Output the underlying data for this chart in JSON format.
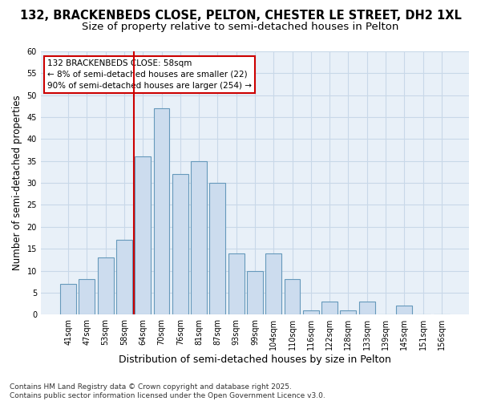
{
  "title1": "132, BRACKENBEDS CLOSE, PELTON, CHESTER LE STREET, DH2 1XL",
  "title2": "Size of property relative to semi-detached houses in Pelton",
  "xlabel": "Distribution of semi-detached houses by size in Pelton",
  "ylabel": "Number of semi-detached properties",
  "categories": [
    "41sqm",
    "47sqm",
    "53sqm",
    "58sqm",
    "64sqm",
    "70sqm",
    "76sqm",
    "81sqm",
    "87sqm",
    "93sqm",
    "99sqm",
    "104sqm",
    "110sqm",
    "116sqm",
    "122sqm",
    "128sqm",
    "133sqm",
    "139sqm",
    "145sqm",
    "151sqm",
    "156sqm"
  ],
  "values": [
    7,
    8,
    13,
    17,
    36,
    47,
    32,
    35,
    30,
    14,
    10,
    14,
    8,
    1,
    3,
    1,
    3,
    0,
    2,
    0,
    0
  ],
  "bar_color": "#ccdcee",
  "bar_edge_color": "#6699bb",
  "grid_color": "#c8d8e8",
  "background_color": "#e8f0f8",
  "vline_color": "#cc0000",
  "annotation_text": "132 BRACKENBEDS CLOSE: 58sqm\n← 8% of semi-detached houses are smaller (22)\n90% of semi-detached houses are larger (254) →",
  "annotation_box_color": "#cc0000",
  "ylim": [
    0,
    60
  ],
  "yticks": [
    0,
    5,
    10,
    15,
    20,
    25,
    30,
    35,
    40,
    45,
    50,
    55,
    60
  ],
  "footer": "Contains HM Land Registry data © Crown copyright and database right 2025.\nContains public sector information licensed under the Open Government Licence v3.0.",
  "title_fontsize": 10.5,
  "subtitle_fontsize": 9.5,
  "xlabel_fontsize": 9,
  "ylabel_fontsize": 8.5,
  "tick_fontsize": 7,
  "annotation_fontsize": 7.5,
  "footer_fontsize": 6.5
}
